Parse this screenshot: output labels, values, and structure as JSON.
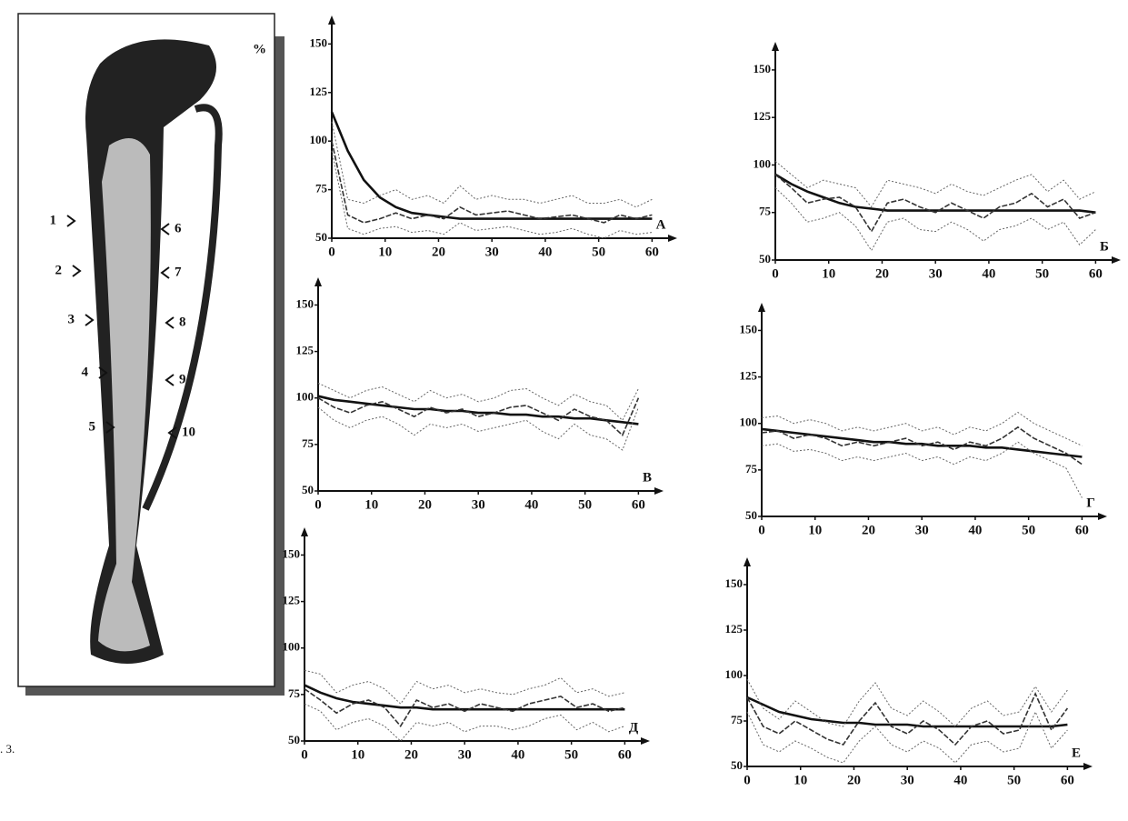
{
  "figure": {
    "unit": "%",
    "caption": ". 3.",
    "markers": [
      "1",
      "2",
      "3",
      "4",
      "5",
      "6",
      "7",
      "8",
      "9",
      "10"
    ]
  },
  "chart_data": [
    {
      "type": "line",
      "title": "А",
      "x": [
        0,
        3,
        6,
        9,
        12,
        15,
        18,
        21,
        24,
        27,
        30,
        33,
        36,
        39,
        42,
        45,
        48,
        51,
        54,
        57,
        60
      ],
      "xlim": [
        0,
        63
      ],
      "xticks": [
        0,
        10,
        20,
        30,
        40,
        50,
        60
      ],
      "ylim": [
        50,
        160
      ],
      "yticks": [
        50,
        75,
        100,
        125,
        150
      ],
      "series": [
        {
          "color": "#111111",
          "values": [
            115,
            95,
            80,
            71,
            66,
            63,
            62,
            61,
            60,
            60,
            60,
            60,
            60,
            60,
            60,
            60,
            60,
            60,
            60,
            60,
            60
          ]
        },
        {
          "color": "#333333",
          "values": [
            100,
            62,
            58,
            60,
            63,
            60,
            62,
            60,
            66,
            62,
            63,
            64,
            62,
            60,
            61,
            62,
            60,
            58,
            62,
            60,
            62
          ]
        },
        {
          "color": "#666666",
          "values": [
            110,
            70,
            68,
            72,
            75,
            70,
            72,
            68,
            77,
            70,
            72,
            70,
            70,
            68,
            70,
            72,
            68,
            68,
            70,
            66,
            70
          ]
        },
        {
          "color": "#666666",
          "values": [
            95,
            55,
            52,
            55,
            56,
            53,
            54,
            52,
            58,
            54,
            55,
            56,
            54,
            52,
            53,
            55,
            52,
            50,
            54,
            52,
            53
          ]
        }
      ]
    },
    {
      "type": "line",
      "title": "Б",
      "x": [
        0,
        3,
        6,
        9,
        12,
        15,
        18,
        21,
        24,
        27,
        30,
        33,
        36,
        39,
        42,
        45,
        48,
        51,
        54,
        57,
        60
      ],
      "xlim": [
        0,
        63
      ],
      "xticks": [
        0,
        10,
        20,
        30,
        40,
        50,
        60
      ],
      "ylim": [
        50,
        160
      ],
      "yticks": [
        50,
        75,
        100,
        125,
        150
      ],
      "series": [
        {
          "color": "#111111",
          "values": [
            95,
            90,
            86,
            83,
            80,
            78,
            77,
            76,
            76,
            76,
            76,
            76,
            76,
            76,
            76,
            76,
            76,
            76,
            76,
            76,
            75
          ]
        },
        {
          "color": "#333333",
          "values": [
            95,
            88,
            80,
            82,
            83,
            78,
            65,
            80,
            82,
            78,
            75,
            80,
            76,
            72,
            78,
            80,
            85,
            78,
            82,
            72,
            75
          ]
        },
        {
          "color": "#666666",
          "values": [
            102,
            95,
            88,
            92,
            90,
            88,
            78,
            92,
            90,
            88,
            85,
            90,
            86,
            84,
            88,
            92,
            95,
            86,
            92,
            82,
            86
          ]
        },
        {
          "color": "#666666",
          "values": [
            88,
            80,
            70,
            72,
            75,
            68,
            55,
            70,
            72,
            66,
            65,
            70,
            66,
            60,
            66,
            68,
            72,
            66,
            70,
            58,
            66
          ]
        }
      ]
    },
    {
      "type": "line",
      "title": "В",
      "x": [
        0,
        3,
        6,
        9,
        12,
        15,
        18,
        21,
        24,
        27,
        30,
        33,
        36,
        39,
        42,
        45,
        48,
        51,
        54,
        57,
        60
      ],
      "xlim": [
        0,
        63
      ],
      "xticks": [
        0,
        10,
        20,
        30,
        40,
        50,
        60
      ],
      "ylim": [
        50,
        160
      ],
      "yticks": [
        50,
        75,
        100,
        125,
        150
      ],
      "series": [
        {
          "color": "#111111",
          "values": [
            101,
            99,
            98,
            97,
            96,
            95,
            94,
            94,
            93,
            93,
            92,
            92,
            91,
            91,
            90,
            90,
            89,
            89,
            88,
            87,
            86
          ]
        },
        {
          "color": "#333333",
          "values": [
            100,
            95,
            92,
            96,
            98,
            94,
            90,
            95,
            92,
            94,
            90,
            92,
            95,
            96,
            92,
            88,
            94,
            90,
            88,
            80,
            100
          ]
        },
        {
          "color": "#666666",
          "values": [
            108,
            104,
            100,
            104,
            106,
            102,
            98,
            104,
            100,
            102,
            98,
            100,
            104,
            105,
            100,
            96,
            102,
            98,
            96,
            88,
            105
          ]
        },
        {
          "color": "#666666",
          "values": [
            95,
            88,
            84,
            88,
            90,
            86,
            80,
            86,
            84,
            86,
            82,
            84,
            86,
            88,
            82,
            78,
            86,
            80,
            78,
            72,
            95
          ]
        }
      ]
    },
    {
      "type": "line",
      "title": "Г",
      "x": [
        0,
        3,
        6,
        9,
        12,
        15,
        18,
        21,
        24,
        27,
        30,
        33,
        36,
        39,
        42,
        45,
        48,
        51,
        54,
        57,
        60
      ],
      "xlim": [
        0,
        63
      ],
      "xticks": [
        0,
        10,
        20,
        30,
        40,
        50,
        60
      ],
      "ylim": [
        50,
        160
      ],
      "yticks": [
        50,
        75,
        100,
        125,
        150
      ],
      "series": [
        {
          "color": "#111111",
          "values": [
            97,
            96,
            95,
            94,
            93,
            92,
            91,
            90,
            90,
            89,
            89,
            88,
            88,
            88,
            87,
            87,
            86,
            85,
            84,
            83,
            82
          ]
        },
        {
          "color": "#333333",
          "values": [
            95,
            96,
            92,
            94,
            92,
            88,
            90,
            88,
            90,
            92,
            88,
            90,
            86,
            90,
            88,
            92,
            98,
            92,
            88,
            84,
            78
          ]
        },
        {
          "color": "#666666",
          "values": [
            103,
            104,
            100,
            102,
            100,
            96,
            98,
            96,
            98,
            100,
            96,
            98,
            94,
            98,
            96,
            100,
            106,
            100,
            96,
            92,
            88
          ]
        },
        {
          "color": "#666666",
          "values": [
            88,
            89,
            85,
            86,
            84,
            80,
            82,
            80,
            82,
            84,
            80,
            82,
            78,
            82,
            80,
            84,
            90,
            84,
            80,
            76,
            60
          ]
        }
      ]
    },
    {
      "type": "line",
      "title": "Д",
      "x": [
        0,
        3,
        6,
        9,
        12,
        15,
        18,
        21,
        24,
        27,
        30,
        33,
        36,
        39,
        42,
        45,
        48,
        51,
        54,
        57,
        60
      ],
      "xlim": [
        0,
        63
      ],
      "xticks": [
        0,
        10,
        20,
        30,
        40,
        50,
        60
      ],
      "ylim": [
        50,
        160
      ],
      "yticks": [
        50,
        75,
        100,
        125,
        150
      ],
      "series": [
        {
          "color": "#111111",
          "values": [
            80,
            76,
            73,
            71,
            70,
            69,
            68,
            68,
            67,
            67,
            67,
            67,
            67,
            67,
            67,
            67,
            67,
            67,
            67,
            67,
            67
          ]
        },
        {
          "color": "#333333",
          "values": [
            78,
            72,
            65,
            70,
            72,
            68,
            58,
            72,
            68,
            70,
            66,
            70,
            68,
            66,
            70,
            72,
            74,
            68,
            70,
            66,
            68
          ]
        },
        {
          "color": "#666666",
          "values": [
            88,
            86,
            76,
            80,
            82,
            78,
            70,
            82,
            78,
            80,
            76,
            78,
            76,
            75,
            78,
            80,
            84,
            76,
            78,
            74,
            76
          ]
        },
        {
          "color": "#666666",
          "values": [
            70,
            66,
            56,
            60,
            62,
            58,
            50,
            60,
            58,
            60,
            55,
            58,
            58,
            56,
            58,
            62,
            64,
            56,
            60,
            55,
            58
          ]
        }
      ]
    },
    {
      "type": "line",
      "title": "Е",
      "x": [
        0,
        3,
        6,
        9,
        12,
        15,
        18,
        21,
        24,
        27,
        30,
        33,
        36,
        39,
        42,
        45,
        48,
        51,
        54,
        57,
        60
      ],
      "xlim": [
        0,
        63
      ],
      "xticks": [
        0,
        10,
        20,
        30,
        40,
        50,
        60
      ],
      "ylim": [
        50,
        160
      ],
      "yticks": [
        50,
        75,
        100,
        125,
        150
      ],
      "series": [
        {
          "color": "#111111",
          "values": [
            88,
            84,
            80,
            78,
            76,
            75,
            74,
            74,
            73,
            73,
            73,
            72,
            72,
            72,
            72,
            72,
            72,
            72,
            72,
            72,
            73
          ]
        },
        {
          "color": "#333333",
          "values": [
            88,
            72,
            68,
            75,
            70,
            65,
            62,
            75,
            85,
            72,
            68,
            75,
            70,
            62,
            72,
            75,
            68,
            70,
            90,
            70,
            82
          ]
        },
        {
          "color": "#666666",
          "values": [
            98,
            82,
            76,
            86,
            80,
            74,
            72,
            86,
            96,
            82,
            78,
            86,
            80,
            72,
            82,
            86,
            78,
            80,
            94,
            80,
            92
          ]
        },
        {
          "color": "#666666",
          "values": [
            80,
            62,
            58,
            64,
            60,
            55,
            52,
            64,
            72,
            62,
            58,
            64,
            60,
            52,
            62,
            64,
            58,
            60,
            80,
            60,
            70
          ]
        }
      ]
    }
  ]
}
